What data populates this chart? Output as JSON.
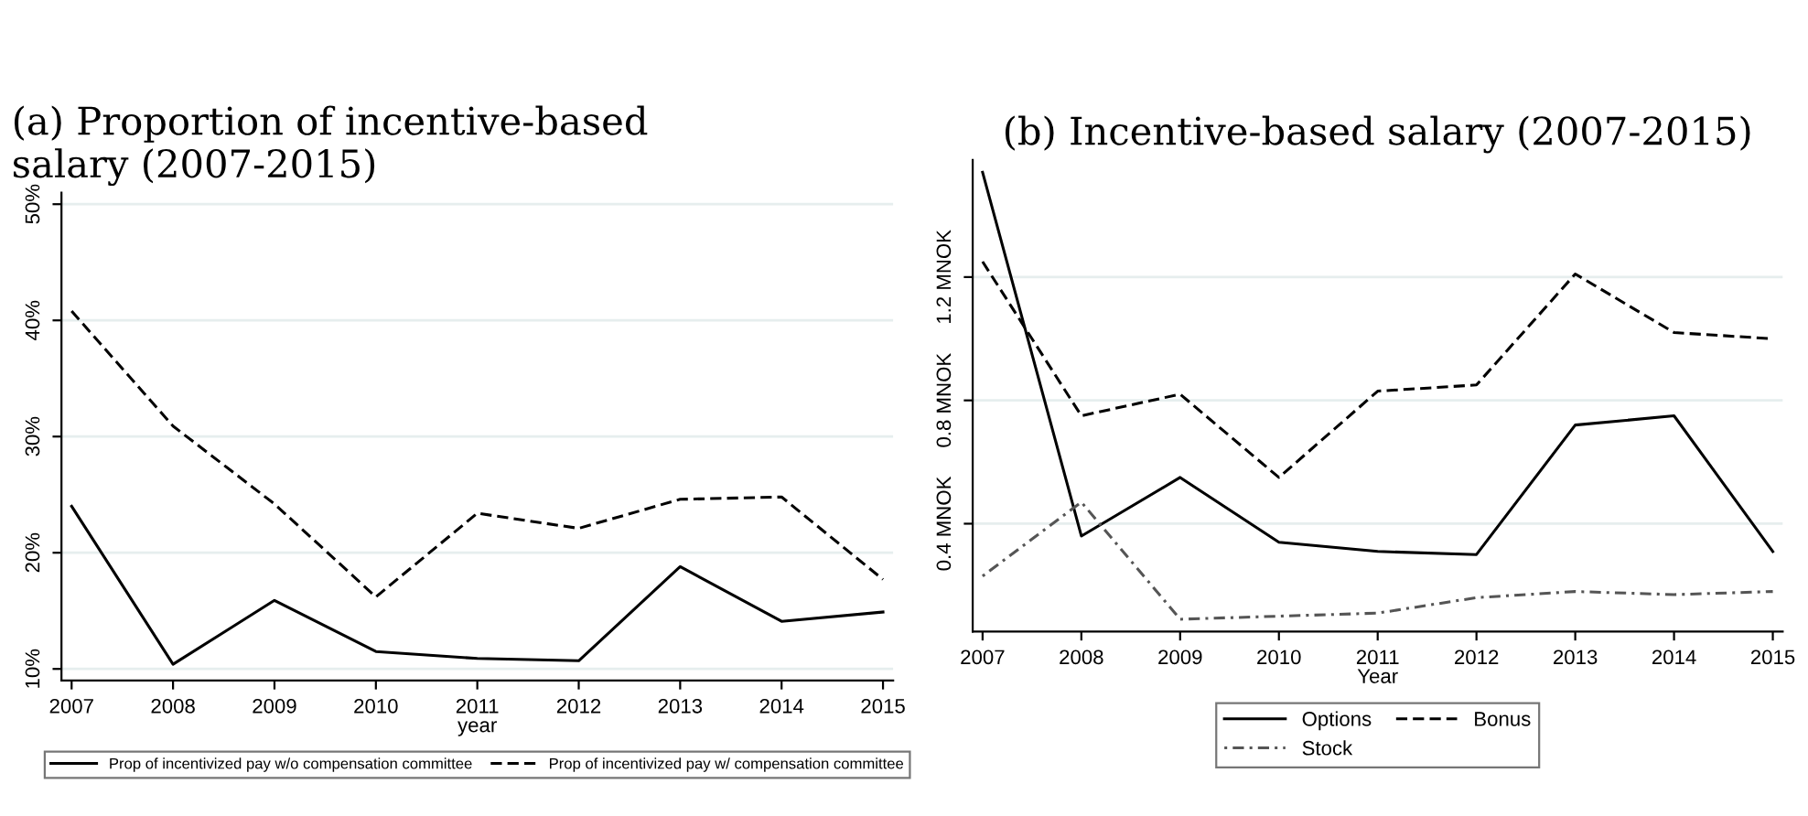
{
  "chart_data": [
    {
      "type": "line",
      "title": "(a) Proportion of incentive-based salary (2007-2015)",
      "xlabel": "year",
      "x": [
        2007,
        2008,
        2009,
        2010,
        2011,
        2012,
        2013,
        2014,
        2015
      ],
      "series": [
        {
          "name": "Prop of incentivized pay w/o compensation committee",
          "color": "#000000",
          "line_style": "solid",
          "values": [
            24.0,
            10.4,
            15.9,
            11.5,
            10.9,
            10.7,
            18.8,
            14.1,
            14.9
          ]
        },
        {
          "name": "Prop of incentivized pay w/ compensation committee",
          "color": "#000000",
          "line_style": "dashed",
          "values": [
            40.8,
            30.9,
            24.2,
            16.2,
            23.4,
            22.1,
            24.6,
            24.8,
            17.7
          ]
        }
      ],
      "xlim": [
        2006.9,
        2015.1
      ],
      "xticks": [
        2007,
        2008,
        2009,
        2010,
        2011,
        2012,
        2013,
        2014,
        2015
      ],
      "ylim": [
        9,
        51
      ],
      "yticks": [
        {
          "value": 10,
          "label": "10%"
        },
        {
          "value": 20,
          "label": "20%"
        },
        {
          "value": 30,
          "label": "30%"
        },
        {
          "value": 40,
          "label": "40%"
        },
        {
          "value": 50,
          "label": "50%"
        }
      ],
      "grid": "y",
      "legend": "bottom",
      "marker": "none"
    },
    {
      "type": "line",
      "title": "(b) Incentive-based salary (2007-2015)",
      "xlabel": "Year",
      "x": [
        2007,
        2008,
        2009,
        2010,
        2011,
        2012,
        2013,
        2014,
        2015
      ],
      "series": [
        {
          "name": "Options",
          "color": "#000000",
          "line_style": "solid",
          "values": [
            1.54,
            0.36,
            0.55,
            0.34,
            0.31,
            0.3,
            0.72,
            0.75,
            0.31
          ]
        },
        {
          "name": "Bonus",
          "color": "#000000",
          "line_style": "dashed",
          "values": [
            1.25,
            0.75,
            0.82,
            0.55,
            0.83,
            0.85,
            1.21,
            1.02,
            1.0
          ]
        },
        {
          "name": "Stock",
          "color": "#555555",
          "line_style": "dotted",
          "values": [
            0.23,
            0.47,
            0.09,
            0.1,
            0.11,
            0.16,
            0.18,
            0.17,
            0.18
          ]
        }
      ],
      "xlim": [
        2006.9,
        2015.1
      ],
      "xticks": [
        2007,
        2008,
        2009,
        2010,
        2011,
        2012,
        2013,
        2014,
        2015
      ],
      "ylim": [
        0.05,
        1.58
      ],
      "yticks": [
        {
          "value": 0.4,
          "label": "0.4 MNOK"
        },
        {
          "value": 0.8,
          "label": "0.8 MNOK"
        },
        {
          "value": 1.2,
          "label": "1.2 MNOK"
        }
      ],
      "grid": "y",
      "legend": "bottom",
      "marker": "none"
    }
  ]
}
